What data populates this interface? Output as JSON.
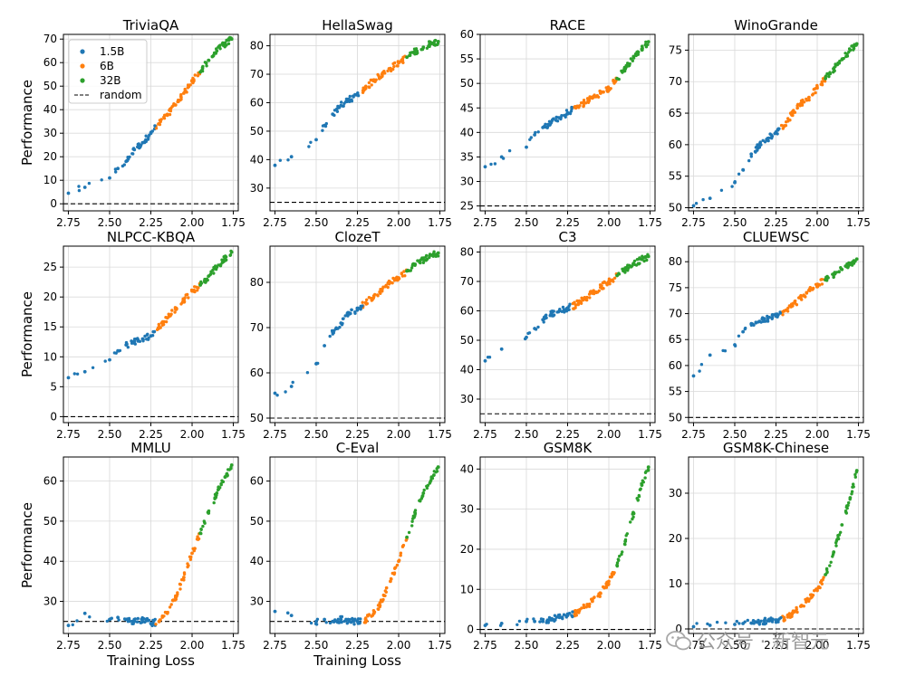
{
  "chart_data": {
    "type": "scatter",
    "shared_xlabel": "Training Loss",
    "shared_ylabel": "Performance",
    "xlim": [
      2.78,
      1.72
    ],
    "xticks": [
      "2.75",
      "2.50",
      "2.25",
      "2.00",
      "1.75"
    ],
    "legend": {
      "location": "top-left (first panel)",
      "entries": [
        {
          "label": "1.5B",
          "color": "#1f77b4"
        },
        {
          "label": "6B",
          "color": "#ff7f0e"
        },
        {
          "label": "32B",
          "color": "#2ca02c"
        },
        {
          "label": "random",
          "color": "#000000",
          "style": "dashed"
        }
      ]
    },
    "grid": true,
    "panels": [
      {
        "title": "TriviaQA",
        "ylim": [
          -3,
          72
        ],
        "yticks": [
          0,
          10,
          20,
          30,
          40,
          50,
          60,
          70
        ],
        "random": 0,
        "points": [
          [
            2.75,
            4.5
          ],
          [
            2.65,
            7
          ],
          [
            2.5,
            11
          ],
          [
            2.45,
            15
          ],
          [
            2.4,
            18
          ],
          [
            2.35,
            23
          ],
          [
            2.3,
            26
          ],
          [
            2.25,
            30
          ],
          [
            2.2,
            34
          ],
          [
            2.15,
            38
          ],
          [
            2.1,
            42
          ],
          [
            2.05,
            47
          ],
          [
            2.0,
            52
          ],
          [
            1.95,
            56
          ],
          [
            1.9,
            61
          ],
          [
            1.85,
            65
          ],
          [
            1.8,
            68
          ],
          [
            1.76,
            70
          ]
        ]
      },
      {
        "title": "HellaSwag",
        "ylim": [
          22,
          84
        ],
        "yticks": [
          30,
          40,
          50,
          60,
          70,
          80
        ],
        "random": 25,
        "points": [
          [
            2.75,
            38
          ],
          [
            2.65,
            41
          ],
          [
            2.5,
            47
          ],
          [
            2.45,
            52
          ],
          [
            2.4,
            56
          ],
          [
            2.35,
            59
          ],
          [
            2.3,
            61
          ],
          [
            2.25,
            63
          ],
          [
            2.2,
            65
          ],
          [
            2.15,
            68
          ],
          [
            2.1,
            70
          ],
          [
            2.05,
            72
          ],
          [
            2.0,
            74
          ],
          [
            1.95,
            76
          ],
          [
            1.9,
            78
          ],
          [
            1.85,
            79.5
          ],
          [
            1.8,
            81
          ],
          [
            1.76,
            81.5
          ]
        ]
      },
      {
        "title": "RACE",
        "ylim": [
          24,
          60
        ],
        "yticks": [
          25,
          30,
          35,
          40,
          45,
          50,
          55,
          60
        ],
        "random": 25,
        "points": [
          [
            2.75,
            33
          ],
          [
            2.65,
            35
          ],
          [
            2.5,
            37
          ],
          [
            2.45,
            39.5
          ],
          [
            2.4,
            41
          ],
          [
            2.35,
            42
          ],
          [
            2.3,
            43
          ],
          [
            2.25,
            44
          ],
          [
            2.2,
            45
          ],
          [
            2.15,
            46
          ],
          [
            2.1,
            47
          ],
          [
            2.05,
            48
          ],
          [
            2.0,
            49
          ],
          [
            1.95,
            51
          ],
          [
            1.9,
            53
          ],
          [
            1.85,
            55.5
          ],
          [
            1.8,
            57
          ],
          [
            1.76,
            58.5
          ]
        ]
      },
      {
        "title": "WinoGrande",
        "ylim": [
          49.5,
          77.5
        ],
        "yticks": [
          50,
          55,
          60,
          65,
          70,
          75
        ],
        "random": 50,
        "points": [
          [
            2.75,
            50.3
          ],
          [
            2.65,
            51.5
          ],
          [
            2.5,
            54
          ],
          [
            2.45,
            56
          ],
          [
            2.4,
            58.5
          ],
          [
            2.35,
            60
          ],
          [
            2.3,
            61
          ],
          [
            2.25,
            62
          ],
          [
            2.2,
            63
          ],
          [
            2.15,
            65
          ],
          [
            2.1,
            66.5
          ],
          [
            2.05,
            67.5
          ],
          [
            2.0,
            69
          ],
          [
            1.95,
            70.5
          ],
          [
            1.9,
            72
          ],
          [
            1.85,
            73.5
          ],
          [
            1.8,
            75
          ],
          [
            1.76,
            76
          ]
        ]
      },
      {
        "title": "NLPCC-KBQA",
        "ylim": [
          -1,
          28.5
        ],
        "yticks": [
          0,
          5,
          10,
          15,
          20,
          25
        ],
        "random": 0,
        "points": [
          [
            2.75,
            6.5
          ],
          [
            2.65,
            7.5
          ],
          [
            2.5,
            9.5
          ],
          [
            2.45,
            11
          ],
          [
            2.4,
            12
          ],
          [
            2.35,
            12.5
          ],
          [
            2.3,
            13
          ],
          [
            2.25,
            13.5
          ],
          [
            2.2,
            15
          ],
          [
            2.15,
            16.5
          ],
          [
            2.1,
            18
          ],
          [
            2.05,
            19.5
          ],
          [
            2.0,
            21
          ],
          [
            1.95,
            22
          ],
          [
            1.9,
            23.5
          ],
          [
            1.85,
            25
          ],
          [
            1.8,
            26.5
          ],
          [
            1.76,
            27.5
          ]
        ]
      },
      {
        "title": "ClozeT",
        "ylim": [
          49,
          88
        ],
        "yticks": [
          50,
          60,
          70,
          80
        ],
        "random": 50,
        "points": [
          [
            2.75,
            55.5
          ],
          [
            2.65,
            57
          ],
          [
            2.5,
            62
          ],
          [
            2.45,
            66
          ],
          [
            2.4,
            69
          ],
          [
            2.35,
            71
          ],
          [
            2.3,
            73
          ],
          [
            2.25,
            74
          ],
          [
            2.2,
            75.5
          ],
          [
            2.15,
            77
          ],
          [
            2.1,
            78.5
          ],
          [
            2.05,
            80
          ],
          [
            2.0,
            81
          ],
          [
            1.95,
            82.5
          ],
          [
            1.9,
            84
          ],
          [
            1.85,
            85
          ],
          [
            1.8,
            86
          ],
          [
            1.76,
            86.5
          ]
        ]
      },
      {
        "title": "C3",
        "ylim": [
          22,
          82
        ],
        "yticks": [
          30,
          40,
          50,
          60,
          70,
          80
        ],
        "random": 25,
        "points": [
          [
            2.75,
            43
          ],
          [
            2.65,
            47
          ],
          [
            2.5,
            51
          ],
          [
            2.45,
            54
          ],
          [
            2.4,
            57
          ],
          [
            2.35,
            59
          ],
          [
            2.3,
            60
          ],
          [
            2.25,
            61
          ],
          [
            2.2,
            62
          ],
          [
            2.15,
            64
          ],
          [
            2.1,
            66
          ],
          [
            2.05,
            68
          ],
          [
            2.0,
            70
          ],
          [
            1.95,
            72
          ],
          [
            1.9,
            74
          ],
          [
            1.85,
            76
          ],
          [
            1.8,
            77.5
          ],
          [
            1.76,
            78.5
          ]
        ]
      },
      {
        "title": "CLUEWSC",
        "ylim": [
          49,
          83
        ],
        "yticks": [
          50,
          55,
          60,
          65,
          70,
          75,
          80
        ],
        "random": 50,
        "points": [
          [
            2.75,
            58
          ],
          [
            2.65,
            62
          ],
          [
            2.5,
            64
          ],
          [
            2.45,
            66.5
          ],
          [
            2.4,
            68
          ],
          [
            2.35,
            68.5
          ],
          [
            2.3,
            69
          ],
          [
            2.25,
            69.5
          ],
          [
            2.2,
            70.5
          ],
          [
            2.15,
            71.5
          ],
          [
            2.1,
            73
          ],
          [
            2.05,
            74.5
          ],
          [
            2.0,
            75.5
          ],
          [
            1.95,
            76.5
          ],
          [
            1.9,
            77.5
          ],
          [
            1.85,
            78.5
          ],
          [
            1.8,
            79.5
          ],
          [
            1.76,
            80.5
          ]
        ]
      },
      {
        "title": "MMLU",
        "ylim": [
          22,
          66
        ],
        "yticks": [
          30,
          40,
          50,
          60
        ],
        "random": 25,
        "points": [
          [
            2.75,
            24
          ],
          [
            2.65,
            27
          ],
          [
            2.5,
            25.5
          ],
          [
            2.45,
            26
          ],
          [
            2.4,
            25.5
          ],
          [
            2.35,
            25
          ],
          [
            2.3,
            25.5
          ],
          [
            2.25,
            24.5
          ],
          [
            2.2,
            25
          ],
          [
            2.15,
            27
          ],
          [
            2.1,
            31
          ],
          [
            2.05,
            36
          ],
          [
            2.0,
            42
          ],
          [
            1.95,
            47
          ],
          [
            1.9,
            52
          ],
          [
            1.85,
            57
          ],
          [
            1.8,
            61
          ],
          [
            1.76,
            64
          ]
        ]
      },
      {
        "title": "C-Eval",
        "ylim": [
          22,
          66
        ],
        "yticks": [
          30,
          40,
          50,
          60
        ],
        "random": 25,
        "points": [
          [
            2.75,
            27.5
          ],
          [
            2.65,
            26.5
          ],
          [
            2.5,
            25
          ],
          [
            2.45,
            25.5
          ],
          [
            2.4,
            25
          ],
          [
            2.35,
            25.5
          ],
          [
            2.3,
            25
          ],
          [
            2.25,
            25
          ],
          [
            2.2,
            25.5
          ],
          [
            2.15,
            27
          ],
          [
            2.1,
            30
          ],
          [
            2.05,
            35
          ],
          [
            2.0,
            40
          ],
          [
            1.95,
            46
          ],
          [
            1.9,
            52
          ],
          [
            1.85,
            57
          ],
          [
            1.8,
            61
          ],
          [
            1.76,
            63.5
          ]
        ]
      },
      {
        "title": "GSM8K",
        "ylim": [
          -1,
          43
        ],
        "yticks": [
          0,
          10,
          20,
          30,
          40
        ],
        "random": 0,
        "points": [
          [
            2.75,
            1
          ],
          [
            2.65,
            1.5
          ],
          [
            2.5,
            2
          ],
          [
            2.45,
            2
          ],
          [
            2.4,
            2
          ],
          [
            2.35,
            2.5
          ],
          [
            2.3,
            3
          ],
          [
            2.25,
            3.5
          ],
          [
            2.2,
            4
          ],
          [
            2.15,
            5.5
          ],
          [
            2.1,
            7
          ],
          [
            2.05,
            9
          ],
          [
            2.0,
            12
          ],
          [
            1.95,
            16
          ],
          [
            1.9,
            22
          ],
          [
            1.85,
            29
          ],
          [
            1.8,
            36
          ],
          [
            1.76,
            40.5
          ]
        ]
      },
      {
        "title": "GSM8K-Chinese",
        "ylim": [
          -1,
          38
        ],
        "yticks": [
          0,
          10,
          20,
          30
        ],
        "random": 0,
        "points": [
          [
            2.75,
            0.5
          ],
          [
            2.65,
            0.8
          ],
          [
            2.5,
            1
          ],
          [
            2.45,
            1.2
          ],
          [
            2.4,
            1.3
          ],
          [
            2.35,
            1.5
          ],
          [
            2.3,
            1.8
          ],
          [
            2.25,
            2
          ],
          [
            2.2,
            2.5
          ],
          [
            2.15,
            3.5
          ],
          [
            2.1,
            5
          ],
          [
            2.05,
            6.5
          ],
          [
            2.0,
            8.5
          ],
          [
            1.95,
            12
          ],
          [
            1.9,
            17
          ],
          [
            1.85,
            23
          ],
          [
            1.8,
            29
          ],
          [
            1.76,
            35
          ]
        ]
      }
    ]
  },
  "watermark": {
    "text": "公众号 · 新智元",
    "logo_icon": "wechat-bubble-icon"
  }
}
